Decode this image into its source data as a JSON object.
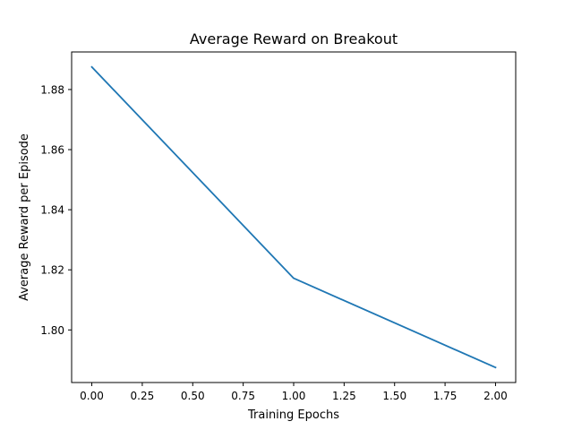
{
  "chart_data": {
    "type": "line",
    "title": "Average Reward on Breakout",
    "xlabel": "Training Epochs",
    "ylabel": "Average Reward per Episode",
    "x": [
      0,
      1,
      2
    ],
    "series": [
      {
        "values": [
          1.8875,
          1.8172,
          1.7875
        ]
      }
    ],
    "xlim": [
      -0.1,
      2.1
    ],
    "ylim": [
      1.7825,
      1.8925
    ],
    "xticks": [
      0.0,
      0.25,
      0.5,
      0.75,
      1.0,
      1.25,
      1.5,
      1.75,
      2.0
    ],
    "xtick_labels": [
      "0.00",
      "0.25",
      "0.50",
      "0.75",
      "1.00",
      "1.25",
      "1.50",
      "1.75",
      "2.00"
    ],
    "yticks": [
      1.8,
      1.82,
      1.84,
      1.86,
      1.88
    ],
    "ytick_labels": [
      "1.80",
      "1.82",
      "1.84",
      "1.86",
      "1.88"
    ],
    "grid": false,
    "line_color": "#1f77b4"
  }
}
